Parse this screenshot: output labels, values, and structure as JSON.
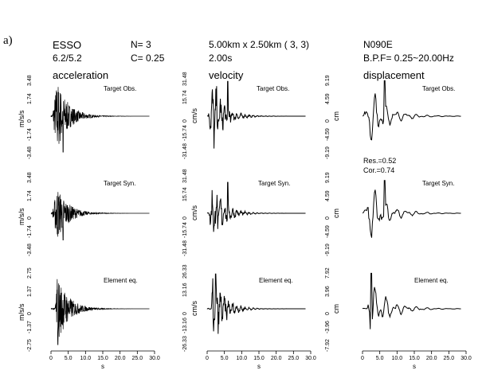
{
  "header": {
    "panel_label": "a)",
    "station": "ESSO",
    "mag": "6.2/5.2",
    "n": "N= 3",
    "c": "C= 0.25",
    "grid": "5.00km x 2.50km  ( 3, 3)",
    "window": "2.00s",
    "component": "N090E",
    "bpf": "B.P.F= 0.25~20.00Hz"
  },
  "columns": [
    {
      "title": "acceleration",
      "unit": "m/s/s"
    },
    {
      "title": "velocity",
      "unit": "cm/s"
    },
    {
      "title": "displacement",
      "unit": "cm"
    }
  ],
  "rows": [
    {
      "label": "Target Obs."
    },
    {
      "label": "Target Syn."
    },
    {
      "label": "Element eq."
    }
  ],
  "ytick_labels": [
    [
      "3.48",
      "1.74",
      "0",
      "-1.74",
      "-3.48"
    ],
    [
      "31.48",
      "15.74",
      "0",
      "-15.74",
      "-31.48"
    ],
    [
      "9.19",
      "4.59",
      "0",
      "-4.59",
      "-9.19"
    ],
    [
      "3.48",
      "1.74",
      "0",
      "-1.74",
      "-3.48"
    ],
    [
      "31.48",
      "15.74",
      "0",
      "-15.74",
      "-31.48"
    ],
    [
      "9.19",
      "4.59",
      "0",
      "-4.59",
      "-9.19"
    ],
    [
      "2.75",
      "1.37",
      "0",
      "-1.37",
      "-2.75"
    ],
    [
      "26.33",
      "13.16",
      "0",
      "-13.16",
      "-26.33"
    ],
    [
      "7.92",
      "3.96",
      "0",
      "-3.96",
      "-7.92"
    ]
  ],
  "fit_stats": {
    "res": "Res.=0.52",
    "cor": "Cor.=0.74"
  },
  "x_ticks": [
    "0",
    "5.0",
    "10.0",
    "15.0",
    "20.0",
    "25.0",
    "30.0"
  ],
  "x_label": "s",
  "colors": {
    "trace": "#000000",
    "axis": "#000000"
  },
  "chart_data": {
    "type": "line",
    "title": "",
    "xlabel": "s",
    "xlim": [
      0,
      30
    ],
    "panels": [
      {
        "row": "Target Obs.",
        "column": "acceleration",
        "ylim": [
          -3.48,
          3.48
        ],
        "unit": "m/s/s",
        "peak": 3.48,
        "t_peak": 3.5
      },
      {
        "row": "Target Obs.",
        "column": "velocity",
        "ylim": [
          -31.48,
          31.48
        ],
        "unit": "cm/s",
        "peak": 31.48,
        "t_peak": 6.0
      },
      {
        "row": "Target Obs.",
        "column": "displacement",
        "ylim": [
          -9.19,
          9.19
        ],
        "unit": "cm",
        "peak": 9.19,
        "t_peak": 6.5
      },
      {
        "row": "Target Syn.",
        "column": "acceleration",
        "ylim": [
          -3.48,
          3.48
        ],
        "unit": "m/s/s",
        "peak": 2.6,
        "t_peak": 3.5
      },
      {
        "row": "Target Syn.",
        "column": "velocity",
        "ylim": [
          -31.48,
          31.48
        ],
        "unit": "cm/s",
        "peak": 28.0,
        "t_peak": 6.0
      },
      {
        "row": "Target Syn.",
        "column": "displacement",
        "ylim": [
          -9.19,
          9.19
        ],
        "unit": "cm",
        "peak": 8.5,
        "t_peak": 6.5
      },
      {
        "row": "Element eq.",
        "column": "acceleration",
        "ylim": [
          -2.75,
          2.75
        ],
        "unit": "m/s/s",
        "peak": 2.75,
        "t_peak": 2.0
      },
      {
        "row": "Element eq.",
        "column": "velocity",
        "ylim": [
          -26.33,
          26.33
        ],
        "unit": "cm/s",
        "peak": 26.33,
        "t_peak": 2.5
      },
      {
        "row": "Element eq.",
        "column": "displacement",
        "ylim": [
          -7.92,
          7.92
        ],
        "unit": "cm",
        "peak": 7.92,
        "t_peak": 2.5
      }
    ]
  }
}
